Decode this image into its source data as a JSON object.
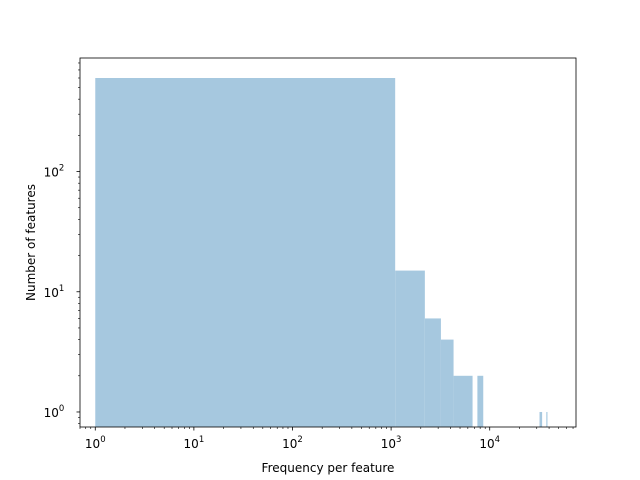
{
  "chart_data": {
    "type": "bar",
    "title": "",
    "xlabel": "Frequency per feature",
    "ylabel": "Number of features",
    "x_scale": "log",
    "y_scale": "log",
    "xlim": [
      0.7,
      75000
    ],
    "ylim": [
      0.75,
      880
    ],
    "grid": false,
    "legend": "none",
    "bar_color": "#a6c8df",
    "x_ticks": [
      {
        "value": 1,
        "base": "10",
        "exp": "0"
      },
      {
        "value": 10,
        "base": "10",
        "exp": "1"
      },
      {
        "value": 100,
        "base": "10",
        "exp": "2"
      },
      {
        "value": 1000,
        "base": "10",
        "exp": "3"
      },
      {
        "value": 10000,
        "base": "10",
        "exp": "4"
      }
    ],
    "y_ticks": [
      {
        "value": 1,
        "base": "10",
        "exp": "0"
      },
      {
        "value": 10,
        "base": "10",
        "exp": "1"
      },
      {
        "value": 100,
        "base": "10",
        "exp": "2"
      }
    ],
    "bins": [
      {
        "x0": 1,
        "x1": 1100,
        "count": 600
      },
      {
        "x0": 1100,
        "x1": 2200,
        "count": 15
      },
      {
        "x0": 2200,
        "x1": 3200,
        "count": 6
      },
      {
        "x0": 3200,
        "x1": 4300,
        "count": 4
      },
      {
        "x0": 4300,
        "x1": 6700,
        "count": 2
      },
      {
        "x0": 7500,
        "x1": 8600,
        "count": 2
      },
      {
        "x0": 32000,
        "x1": 34000,
        "count": 1
      },
      {
        "x0": 37500,
        "x1": 38500,
        "count": 1
      }
    ]
  }
}
